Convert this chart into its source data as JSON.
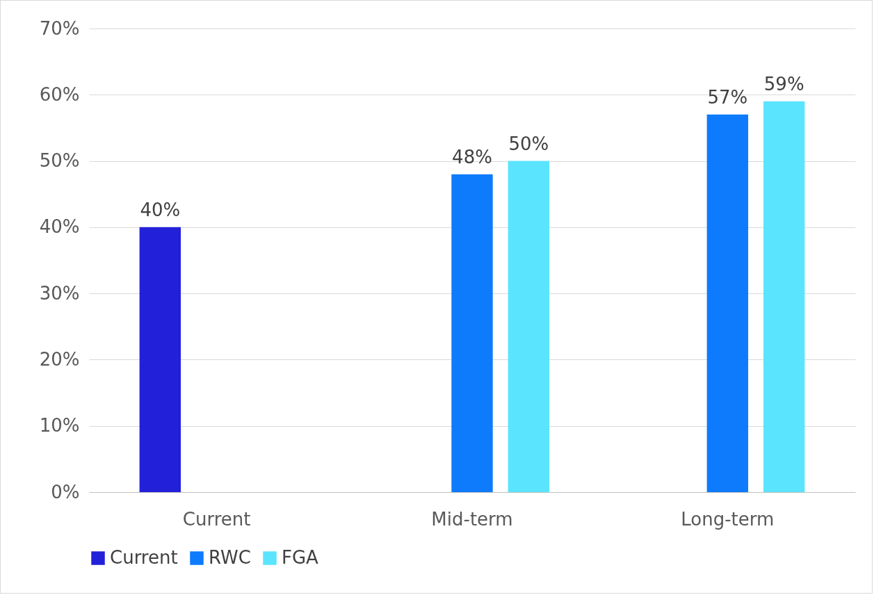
{
  "chart_data": {
    "type": "bar",
    "categories": [
      "Current",
      "Mid-term",
      "Long-term"
    ],
    "series": [
      {
        "name": "Current",
        "color": "#2320d9",
        "values": [
          40,
          null,
          null
        ],
        "value_labels": [
          "40%",
          null,
          null
        ]
      },
      {
        "name": "RWC",
        "color": "#0d7bfc",
        "values": [
          null,
          48,
          57
        ],
        "value_labels": [
          null,
          "48%",
          "57%"
        ]
      },
      {
        "name": "FGA",
        "color": "#5ae4fe",
        "values": [
          null,
          50,
          59
        ],
        "value_labels": [
          null,
          "50%",
          "59%"
        ]
      }
    ],
    "ylim": [
      0,
      70
    ],
    "yticks": [
      {
        "value": 0,
        "label": "0%"
      },
      {
        "value": 10,
        "label": "10%"
      },
      {
        "value": 20,
        "label": "20%"
      },
      {
        "value": 30,
        "label": "30%"
      },
      {
        "value": 40,
        "label": "40%"
      },
      {
        "value": 50,
        "label": "50%"
      },
      {
        "value": 60,
        "label": "60%"
      },
      {
        "value": 70,
        "label": "70%"
      }
    ],
    "grid": "y",
    "legend": "bottom"
  }
}
